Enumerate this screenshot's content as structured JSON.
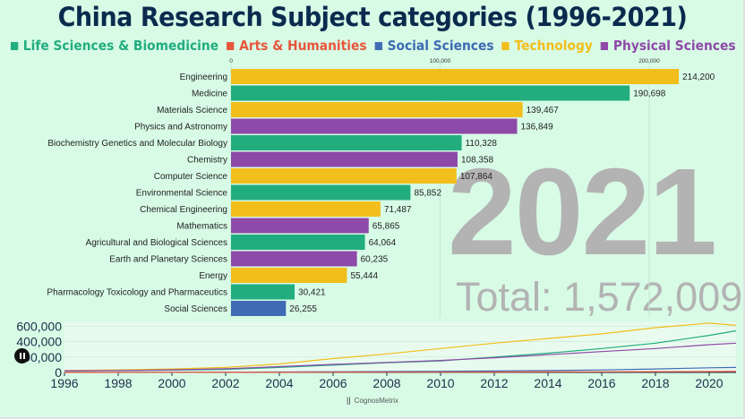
{
  "title": "China Research Subject categories (1996-2021)",
  "legend": [
    {
      "name": "Life Sciences & Biomedicine",
      "color": "#22ad7f"
    },
    {
      "name": "Arts & Humanities",
      "color": "#e8563c"
    },
    {
      "name": "Social Sciences",
      "color": "#3e6bb3"
    },
    {
      "name": "Technology",
      "color": "#f2be1b"
    },
    {
      "name": "Physical Sciences",
      "color": "#8e4aa8"
    }
  ],
  "year": "2021",
  "total": "Total: 1,572,009",
  "brand": "CognosMetrix",
  "chart_data": [
    {
      "type": "bar",
      "orientation": "horizontal",
      "title": "",
      "xlim": [
        0,
        245000
      ],
      "x_ticks": [
        0,
        100000,
        200000
      ],
      "x_tick_labels": [
        "0",
        "100,000",
        "200,000"
      ],
      "grid": true,
      "categories": [
        "Engineering",
        "Medicine",
        "Materials Science",
        "Physics and Astronomy",
        "Biochemistry Genetics and Molecular Biology",
        "Chemistry",
        "Computer Science",
        "Environmental Science",
        "Chemical Engineering",
        "Mathematics",
        "Agricultural and Biological Sciences",
        "Earth and Planetary Sciences",
        "Energy",
        "Pharmacology Toxicology and Pharmaceutics",
        "Social Sciences"
      ],
      "values": [
        214200,
        190698,
        139467,
        136849,
        110328,
        108358,
        107864,
        85852,
        71487,
        65865,
        64064,
        60235,
        55444,
        30421,
        26255
      ],
      "value_labels": [
        "214,200",
        "190,698",
        "139,467",
        "136,849",
        "110,328",
        "108,358",
        "107,864",
        "85,852",
        "71,487",
        "65,865",
        "64,064",
        "60,235",
        "55,444",
        "30,421",
        "26,255"
      ],
      "groups": [
        "Technology",
        "Life Sciences & Biomedicine",
        "Technology",
        "Physical Sciences",
        "Life Sciences & Biomedicine",
        "Physical Sciences",
        "Technology",
        "Life Sciences & Biomedicine",
        "Technology",
        "Physical Sciences",
        "Life Sciences & Biomedicine",
        "Physical Sciences",
        "Technology",
        "Life Sciences & Biomedicine",
        "Social Sciences"
      ]
    },
    {
      "type": "line",
      "title": "",
      "xlim": [
        1996,
        2021
      ],
      "ylim": [
        0,
        650000
      ],
      "x_ticks": [
        1996,
        1998,
        2000,
        2002,
        2004,
        2006,
        2008,
        2010,
        2012,
        2014,
        2016,
        2018,
        2020
      ],
      "y_ticks": [
        0,
        200000,
        400000,
        600000
      ],
      "y_tick_labels": [
        "0",
        "200,000",
        "400,000",
        "600,000"
      ],
      "x": [
        1996,
        1998,
        2000,
        2002,
        2004,
        2006,
        2008,
        2010,
        2012,
        2014,
        2016,
        2018,
        2020,
        2021
      ],
      "series": [
        {
          "name": "Technology",
          "color": "#f2be1b",
          "values": [
            25000,
            32000,
            45000,
            65000,
            110000,
            180000,
            240000,
            310000,
            380000,
            440000,
            500000,
            580000,
            640000,
            610000
          ]
        },
        {
          "name": "Life Sciences & Biomedicine",
          "color": "#22ad7f",
          "values": [
            20000,
            24000,
            30000,
            40000,
            65000,
            95000,
            125000,
            150000,
            200000,
            250000,
            310000,
            380000,
            480000,
            540000
          ]
        },
        {
          "name": "Physical Sciences",
          "color": "#8e4aa8",
          "values": [
            22000,
            26000,
            34000,
            48000,
            75000,
            105000,
            130000,
            155000,
            190000,
            230000,
            270000,
            310000,
            360000,
            380000
          ]
        },
        {
          "name": "Social Sciences",
          "color": "#3e6bb3",
          "values": [
            2000,
            2500,
            3000,
            4000,
            6000,
            9000,
            12000,
            15000,
            19000,
            24000,
            32000,
            45000,
            60000,
            65000
          ]
        },
        {
          "name": "Arts & Humanities",
          "color": "#e8563c",
          "values": [
            500,
            600,
            800,
            1000,
            1500,
            2000,
            3000,
            4000,
            5000,
            6500,
            8000,
            10000,
            12000,
            13000
          ]
        }
      ]
    }
  ]
}
